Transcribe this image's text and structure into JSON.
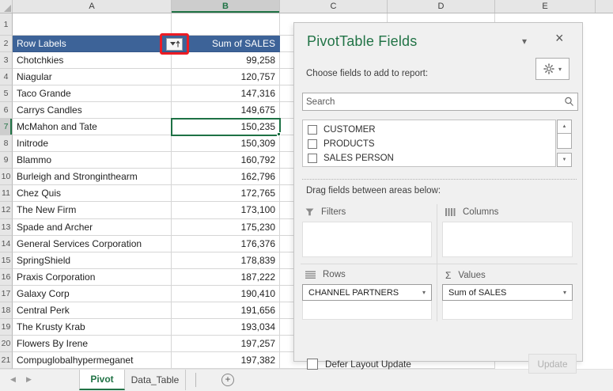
{
  "grid": {
    "columns": [
      "A",
      "B",
      "C",
      "D",
      "E"
    ],
    "selected_column": "B",
    "selected_cell": "B7",
    "selected_data_row": 7,
    "total_rows": 21,
    "header_row": 2,
    "data_start_row": 3,
    "pivot_header": {
      "row_labels": "Row Labels",
      "values": "Sum of SALES"
    },
    "rows": [
      {
        "label": "Chotchkies",
        "value": "99,258"
      },
      {
        "label": "Niagular",
        "value": "120,757"
      },
      {
        "label": "Taco Grande",
        "value": "147,316"
      },
      {
        "label": "Carrys Candles",
        "value": "149,675"
      },
      {
        "label": "McMahon and Tate",
        "value": "150,235"
      },
      {
        "label": "Initrode",
        "value": "150,309"
      },
      {
        "label": "Blammo",
        "value": "160,792"
      },
      {
        "label": "Burleigh and Stronginthearm",
        "value": "162,796"
      },
      {
        "label": "Chez Quis",
        "value": "172,765"
      },
      {
        "label": "The New Firm",
        "value": "173,100"
      },
      {
        "label": "Spade and Archer",
        "value": "175,230"
      },
      {
        "label": "General Services Corporation",
        "value": "176,376"
      },
      {
        "label": "SpringShield",
        "value": "178,839"
      },
      {
        "label": "Praxis Corporation",
        "value": "187,222"
      },
      {
        "label": "Galaxy Corp",
        "value": "190,410"
      },
      {
        "label": "Central Perk",
        "value": "191,656"
      },
      {
        "label": "The Krusty Krab",
        "value": "193,034"
      },
      {
        "label": "Flowers By Irene",
        "value": "197,257"
      },
      {
        "label": "Compuglobalhypermeganet",
        "value": "197,382"
      }
    ]
  },
  "fields_panel": {
    "title": "PivotTable Fields",
    "choose_fields_label": "Choose fields to add to report:",
    "search": {
      "placeholder": "Search"
    },
    "field_list": [
      {
        "name": "CUSTOMER",
        "checked": false
      },
      {
        "name": "PRODUCTS",
        "checked": false
      },
      {
        "name": "SALES PERSON",
        "checked": false
      }
    ],
    "drag_areas_label": "Drag fields between areas below:",
    "areas": {
      "filters": {
        "label": "Filters",
        "items": []
      },
      "columns": {
        "label": "Columns",
        "items": []
      },
      "rows": {
        "label": "Rows",
        "items": [
          "CHANNEL PARTNERS"
        ]
      },
      "values": {
        "label": "Values",
        "items": [
          "Sum of SALES"
        ]
      }
    },
    "defer_layout_update_label": "Defer Layout Update",
    "update_button_label": "Update",
    "defer_checked": false
  },
  "sheet_bar": {
    "tabs": [
      {
        "label": "Pivot",
        "active": true
      },
      {
        "label": "Data_Table",
        "active": false
      }
    ]
  },
  "colors": {
    "excel_green": "#217346",
    "pivot_header_blue": "#3d6398",
    "selection_green": "#1e7145",
    "annotation_red": "#ec1c24",
    "panel_bg": "#f0f0f0"
  }
}
